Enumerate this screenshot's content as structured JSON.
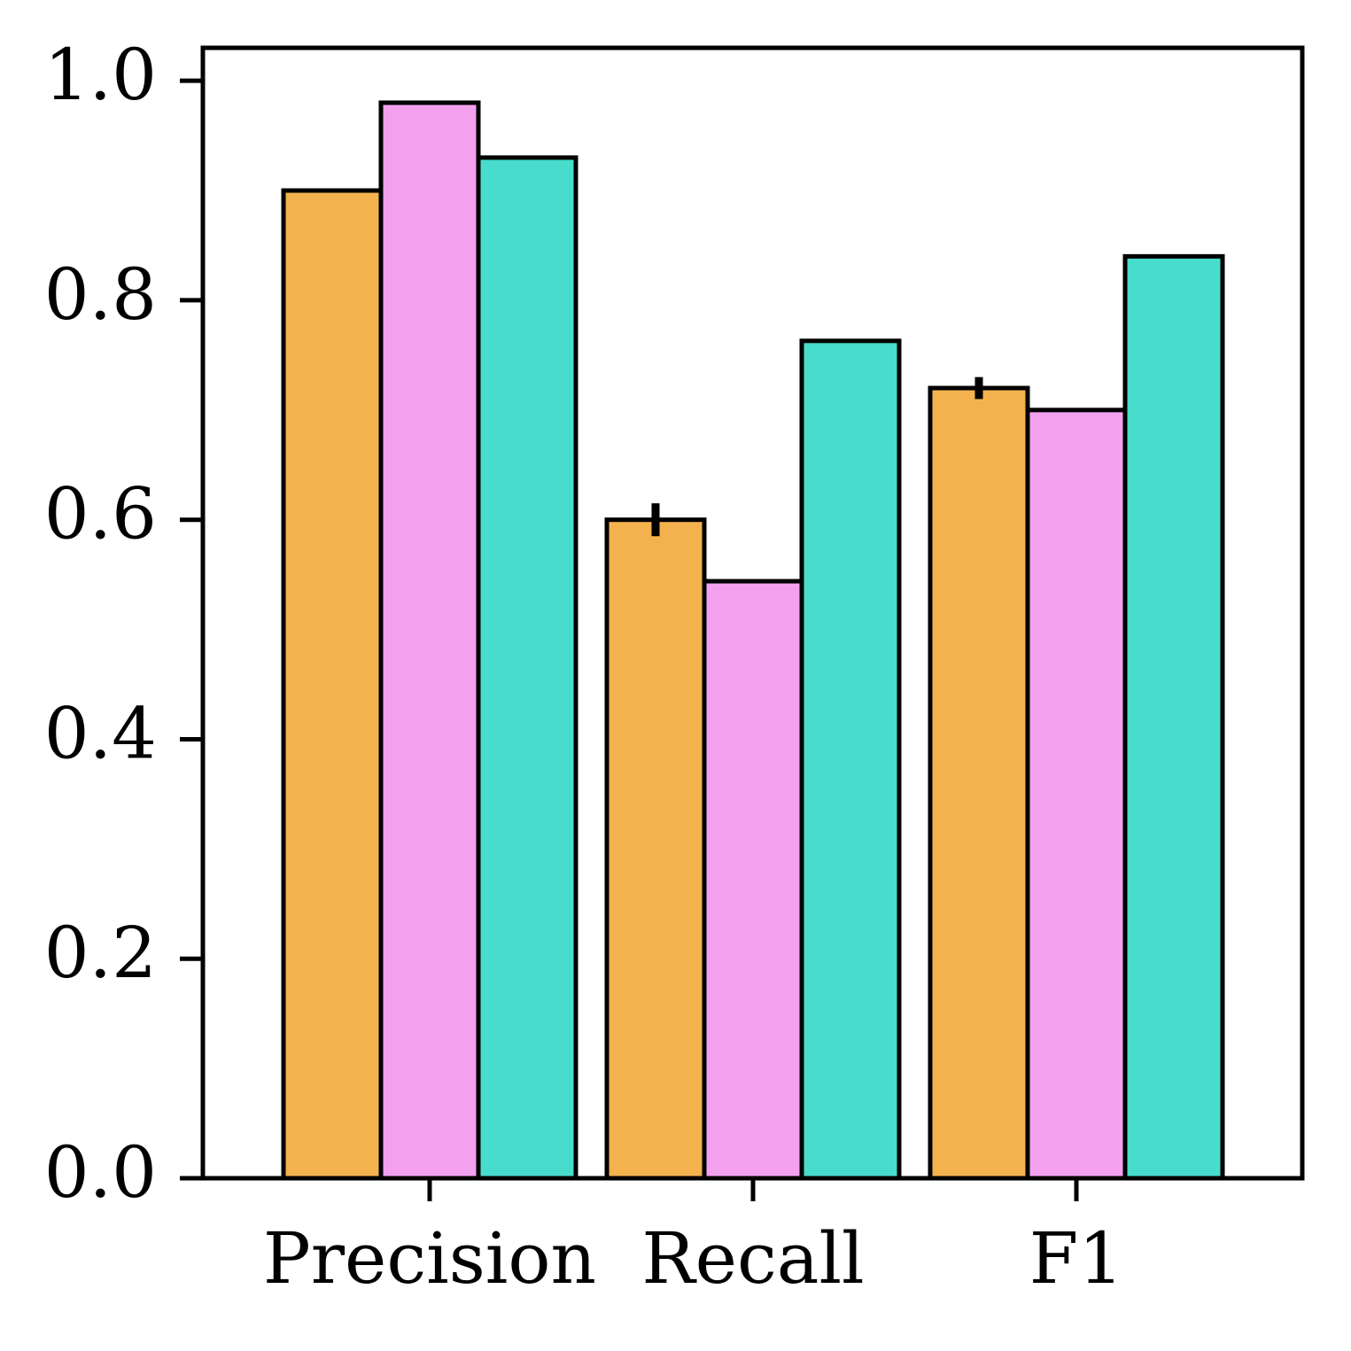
{
  "chart_data": {
    "type": "bar",
    "title": "",
    "xlabel": "",
    "ylabel": "",
    "categories": [
      "Precision",
      "Recall",
      "F1"
    ],
    "series": [
      {
        "name": "",
        "color": "#F4B24E",
        "values": [
          0.9,
          0.6,
          0.72
        ],
        "errors": [
          null,
          0.015,
          0.01
        ]
      },
      {
        "name": "",
        "color": "#F3A1EF",
        "values": [
          0.98,
          0.544,
          0.7
        ],
        "errors": [
          null,
          null,
          null
        ]
      },
      {
        "name": "",
        "color": "#48DCCC",
        "values": [
          0.93,
          0.763,
          0.84
        ],
        "errors": [
          null,
          null,
          null
        ]
      }
    ],
    "ylim": [
      0,
      1.03
    ],
    "yticks": [
      0.0,
      0.2,
      0.4,
      0.6,
      0.8,
      1.0
    ],
    "ytick_labels": [
      "0.0",
      "0.2",
      "0.4",
      "0.6",
      "0.8",
      "1.0"
    ],
    "grid": false,
    "legend": "none"
  }
}
